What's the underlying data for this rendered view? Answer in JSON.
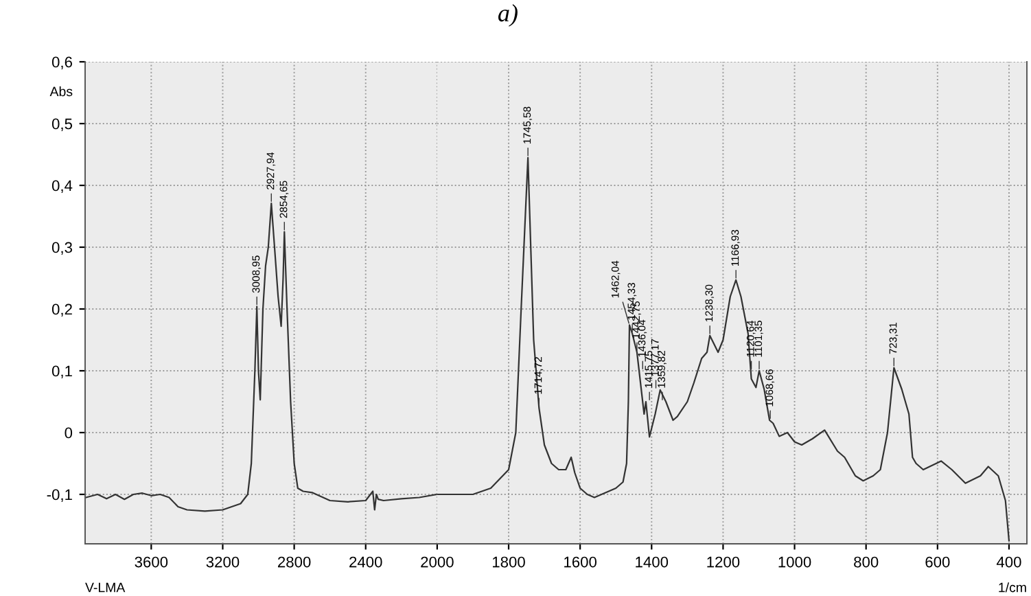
{
  "chart_data": [
    {
      "type": "line",
      "ylabel": "Abs",
      "xlim": [
        3970,
        2000
      ],
      "ylim": [
        -0.18,
        0.6
      ],
      "xticks": [
        3600,
        3200,
        2800,
        2400,
        2000
      ],
      "yticks": [
        {
          "value": 0.6,
          "label": "0,6"
        },
        {
          "value": 0.5,
          "label": "0,5"
        },
        {
          "value": 0.4,
          "label": "0,4"
        },
        {
          "value": 0.3,
          "label": "0,3"
        },
        {
          "value": 0.2,
          "label": "0,2"
        },
        {
          "value": 0.1,
          "label": "0,1"
        },
        0,
        {
          "value": -0.1,
          "label": "-0,1"
        }
      ],
      "grid": true,
      "line_style": "solid",
      "marker": "none",
      "series": [
        {
          "color": "#333333",
          "x": [
            3965,
            3900,
            3850,
            3800,
            3750,
            3700,
            3650,
            3600,
            3550,
            3500,
            3450,
            3400,
            3300,
            3200,
            3100,
            3060,
            3040,
            3020,
            3009,
            3000,
            2990,
            2975,
            2960,
            2945,
            2928,
            2910,
            2890,
            2873,
            2862,
            2855,
            2840,
            2820,
            2800,
            2780,
            2750,
            2700,
            2600,
            2500,
            2400,
            2360,
            2350,
            2340,
            2330,
            2300,
            2200,
            2100,
            2000
          ],
          "values": [
            -0.105,
            -0.1,
            -0.107,
            -0.1,
            -0.108,
            -0.1,
            -0.098,
            -0.102,
            -0.1,
            -0.105,
            -0.12,
            -0.125,
            -0.127,
            -0.125,
            -0.115,
            -0.1,
            -0.05,
            0.1,
            0.204,
            0.1,
            0.053,
            0.2,
            0.27,
            0.3,
            0.371,
            0.3,
            0.22,
            0.172,
            0.25,
            0.325,
            0.2,
            0.05,
            -0.05,
            -0.09,
            -0.095,
            -0.097,
            -0.11,
            -0.112,
            -0.11,
            -0.095,
            -0.125,
            -0.1,
            -0.108,
            -0.11,
            -0.107,
            -0.105,
            -0.1
          ]
        }
      ],
      "annotations": [
        {
          "text": "3008,95",
          "x": 3009,
          "y": 0.204
        },
        {
          "text": "2927,94",
          "x": 2928,
          "y": 0.371
        },
        {
          "text": "2854,65",
          "x": 2855,
          "y": 0.325
        },
        "V-LMA"
      ]
    },
    {
      "type": "line",
      "title": "a)",
      "xlabel": "1/cm",
      "xlim": [
        2000,
        350
      ],
      "ylim": [
        -0.18,
        0.6
      ],
      "xticks": [
        1800,
        1600,
        1400,
        1200,
        1000,
        800,
        600,
        400
      ],
      "yticks": [
        0.6,
        0.5,
        0.4,
        0.3,
        0.2,
        0.1,
        0,
        -0.1
      ],
      "tick_labels": "x",
      "grid": true,
      "line_style": "solid",
      "marker": "none",
      "series": [
        {
          "color": "#333333",
          "x": [
            2000,
            1900,
            1850,
            1800,
            1780,
            1765,
            1746,
            1730,
            1715,
            1700,
            1680,
            1660,
            1640,
            1625,
            1615,
            1600,
            1580,
            1560,
            1540,
            1500,
            1480,
            1470,
            1465,
            1462,
            1454,
            1441,
            1435,
            1421,
            1416,
            1406,
            1390,
            1376,
            1360,
            1340,
            1328,
            1300,
            1282,
            1260,
            1245,
            1237,
            1214,
            1200,
            1180,
            1164,
            1150,
            1130,
            1121,
            1108,
            1099,
            1085,
            1070,
            1060,
            1043,
            1020,
            1000,
            980,
            950,
            916,
            880,
            860,
            830,
            808,
            780,
            760,
            740,
            722,
            700,
            680,
            670,
            660,
            640,
            590,
            560,
            522,
            480,
            458,
            430,
            410,
            400
          ],
          "values": [
            -0.1,
            -0.1,
            -0.09,
            -0.06,
            0.0,
            0.2,
            0.445,
            0.15,
            0.04,
            -0.02,
            -0.05,
            -0.06,
            -0.06,
            -0.04,
            -0.065,
            -0.09,
            -0.1,
            -0.105,
            -0.1,
            -0.09,
            -0.08,
            -0.05,
            0.05,
            0.174,
            0.16,
            0.13,
            0.1,
            0.03,
            0.05,
            -0.007,
            0.03,
            0.069,
            0.05,
            0.02,
            0.026,
            0.05,
            0.08,
            0.12,
            0.13,
            0.157,
            0.13,
            0.15,
            0.22,
            0.247,
            0.22,
            0.16,
            0.087,
            0.073,
            0.1,
            0.07,
            0.02,
            0.015,
            -0.006,
            0.0,
            -0.015,
            -0.02,
            -0.01,
            0.004,
            -0.03,
            -0.04,
            -0.07,
            -0.078,
            -0.07,
            -0.06,
            0.0,
            0.105,
            0.07,
            0.03,
            -0.04,
            -0.05,
            -0.06,
            -0.046,
            -0.06,
            -0.082,
            -0.07,
            -0.055,
            -0.07,
            -0.11,
            -0.175
          ]
        }
      ],
      "annotations": [
        {
          "text": "1745,58",
          "x": 1746,
          "y": 0.445
        },
        {
          "text": "1714,72",
          "x": 1715,
          "y": 0.04
        },
        {
          "text": "1462,04",
          "x": 1462,
          "y": 0.174
        },
        {
          "text": "1454,33",
          "x": 1454,
          "y": 0.16
        },
        {
          "text": "1442,75",
          "x": 1441,
          "y": 0.13
        },
        {
          "text": "1436,04",
          "x": 1425,
          "y": 0.1
        },
        {
          "text": "1415,75",
          "x": 1406,
          "y": 0.05
        },
        {
          "text": "1377,17",
          "x": 1388,
          "y": 0.069
        },
        {
          "text": "1359,82",
          "x": 1370,
          "y": 0.05
        },
        {
          "text": "1238,30",
          "x": 1237,
          "y": 0.157
        },
        {
          "text": "1166,93",
          "x": 1164,
          "y": 0.247
        },
        {
          "text": "1120,64",
          "x": 1121,
          "y": 0.1
        },
        {
          "text": "1101,35",
          "x": 1099,
          "y": 0.1
        },
        {
          "text": "1068,66",
          "x": 1068,
          "y": 0.02
        },
        {
          "text": "723,31",
          "x": 722,
          "y": 0.105
        }
      ]
    }
  ]
}
